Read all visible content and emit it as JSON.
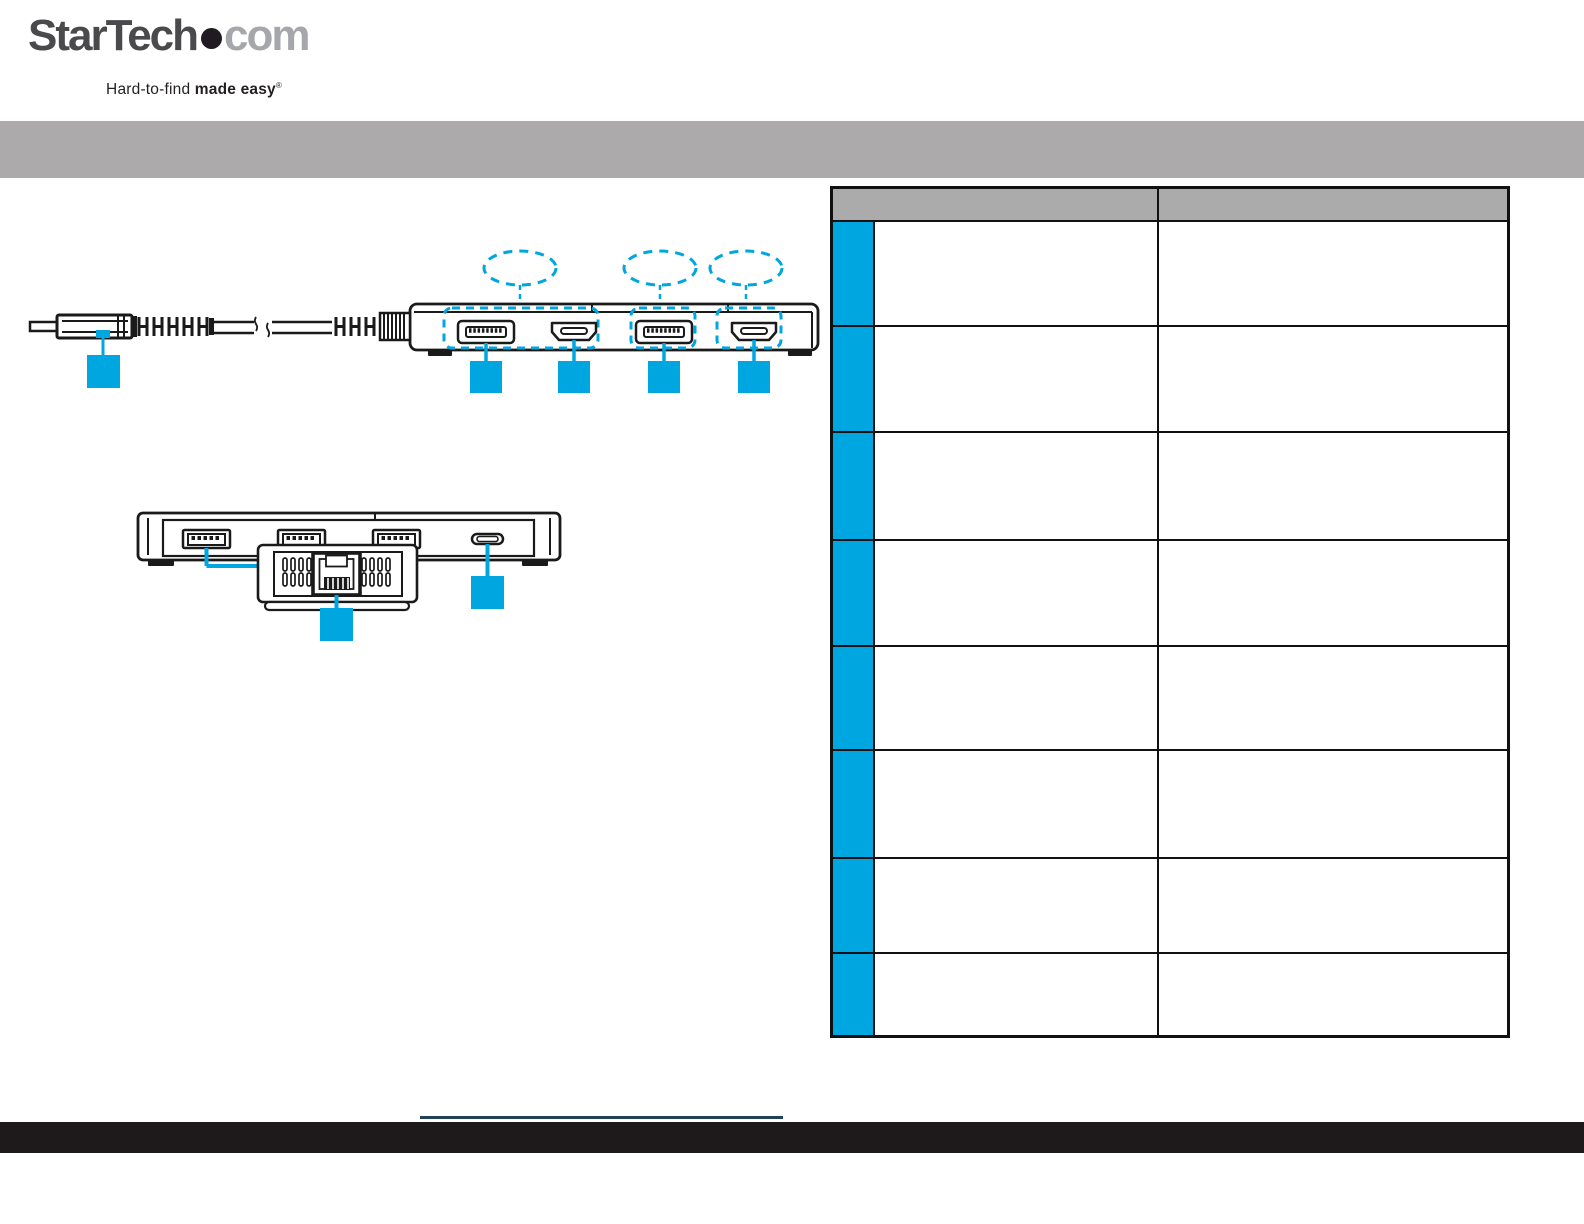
{
  "brand": {
    "name": "StarTech",
    "suffix": "com",
    "tagline_regular": "Hard-to-find ",
    "tagline_bold": "made easy",
    "trademark": "®"
  },
  "banner": {
    "title": ""
  },
  "table": {
    "header": {
      "left": "",
      "right": ""
    },
    "rows": [
      {
        "badge": "",
        "feature": "",
        "description": ""
      },
      {
        "badge": "",
        "feature": "",
        "description": ""
      },
      {
        "badge": "",
        "feature": "",
        "description": ""
      },
      {
        "badge": "",
        "feature": "",
        "description": ""
      },
      {
        "badge": "",
        "feature": "",
        "description": ""
      },
      {
        "badge": "",
        "feature": "",
        "description": ""
      },
      {
        "badge": "",
        "feature": "",
        "description": ""
      },
      {
        "badge": "",
        "feature": "",
        "description": ""
      }
    ]
  },
  "icons": {
    "cable": "usb-c-cable-icon",
    "front_ports": [
      "displayport-icon",
      "hdmi-icon",
      "displayport-icon",
      "hdmi-icon"
    ],
    "rear_ports": [
      "usb-a-icon",
      "usb-a-icon",
      "usb-a-icon",
      "usb-c-icon"
    ],
    "side_ports": [
      "ethernet-rj45-icon"
    ],
    "callout_markers": "blue-callout-square",
    "highlight_markers": "dashed-callout-ellipse"
  },
  "colors": {
    "accent_blue": "#00A6E0",
    "banner_gray": "#ACAAAB",
    "table_header_gray": "#ABABAB",
    "line_black": "#1A1A1A",
    "footer_black": "#1E1A1B",
    "divider_navy": "#20405C"
  },
  "footer": {
    "text": ""
  }
}
